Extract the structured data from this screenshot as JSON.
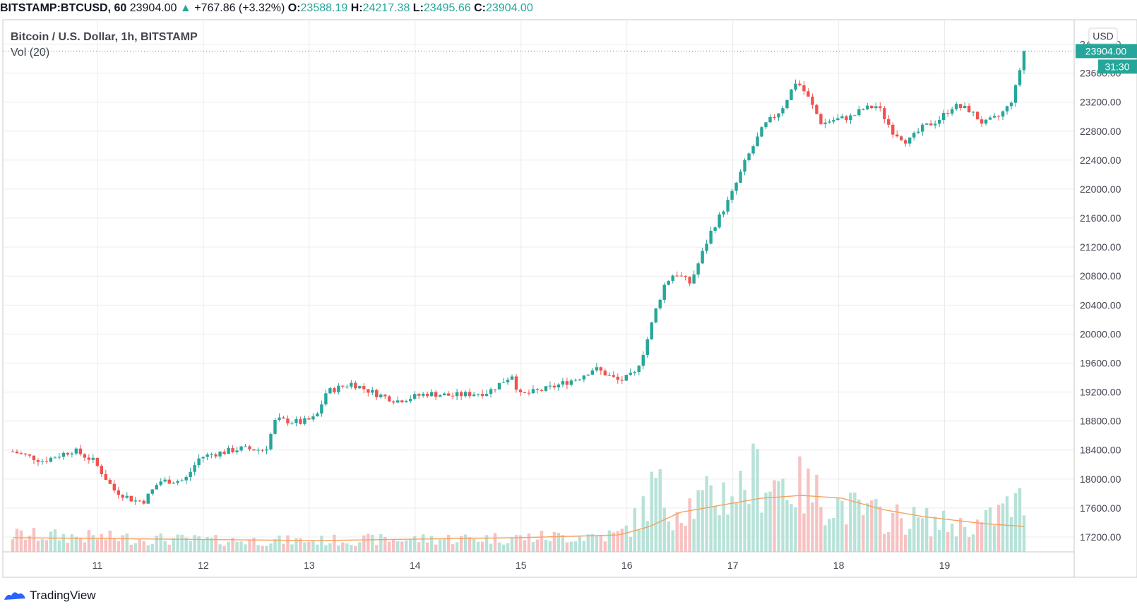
{
  "header": {
    "symbol": "BITSTAMP:BTCUSD, 60",
    "last": "23904.00",
    "arrow": "▲",
    "change": "+767.86 (+3.32%)",
    "o_label": "O:",
    "o_value": "23588.19",
    "h_label": "H:",
    "h_value": "24217.38",
    "l_label": "L:",
    "l_value": "23495.66",
    "c_label": "C:",
    "c_value": "23904.00"
  },
  "legend": {
    "title": "Bitcoin / U.S. Dollar, 1h, BITSTAMP",
    "volume": "Vol (20)"
  },
  "price_axis": {
    "currency": "USD",
    "last_price_label": "23904.00",
    "countdown_label": "31:30"
  },
  "footer": {
    "brand": "TradingView"
  },
  "colors": {
    "up": "#26a69a",
    "down": "#ef5350",
    "vol_up": "#b7e2d8",
    "vol_down": "#f7c2c2",
    "ma": "#f5a25d",
    "grid": "#ececec"
  },
  "chart_data": {
    "type": "candlestick",
    "title": "Bitcoin / U.S. Dollar, 1h, BITSTAMP",
    "ylim": [
      17200,
      24200
    ],
    "y_ticks": [
      "17200.00",
      "17600.00",
      "18000.00",
      "18400.00",
      "18800.00",
      "19200.00",
      "19600.00",
      "20000.00",
      "20400.00",
      "20800.00",
      "21200.00",
      "21600.00",
      "22000.00",
      "22400.00",
      "22800.00",
      "23200.00",
      "23600.00",
      "24000.00"
    ],
    "x_ticks": [
      "11",
      "12",
      "13",
      "14",
      "15",
      "16",
      "17",
      "18",
      "19"
    ],
    "x_tick_positions": [
      0.8,
      1.8,
      2.8,
      3.8,
      4.8,
      5.8,
      6.8,
      7.8,
      8.8
    ],
    "x_range": [
      0,
      9.55
    ],
    "price_keypoints": [
      [
        0,
        18380
      ],
      [
        0.3,
        18250
      ],
      [
        0.6,
        18400
      ],
      [
        0.8,
        18250
      ],
      [
        1.0,
        17850
      ],
      [
        1.2,
        17700
      ],
      [
        1.3,
        17700
      ],
      [
        1.45,
        17970
      ],
      [
        1.7,
        17980
      ],
      [
        1.85,
        18300
      ],
      [
        2.0,
        18350
      ],
      [
        2.25,
        18420
      ],
      [
        2.5,
        18400
      ],
      [
        2.6,
        18820
      ],
      [
        2.85,
        18780
      ],
      [
        3.0,
        18850
      ],
      [
        3.1,
        19200
      ],
      [
        3.35,
        19320
      ],
      [
        3.6,
        19170
      ],
      [
        3.8,
        19080
      ],
      [
        4.1,
        19180
      ],
      [
        4.35,
        19150
      ],
      [
        4.7,
        19200
      ],
      [
        4.95,
        19450
      ],
      [
        5.0,
        19150
      ],
      [
        5.3,
        19250
      ],
      [
        5.6,
        19400
      ],
      [
        5.75,
        19530
      ],
      [
        6.0,
        19350
      ],
      [
        6.15,
        19450
      ],
      [
        6.25,
        19800
      ],
      [
        6.35,
        20300
      ],
      [
        6.45,
        20700
      ],
      [
        6.55,
        20850
      ],
      [
        6.7,
        20700
      ],
      [
        6.9,
        21400
      ],
      [
        7.1,
        21900
      ],
      [
        7.25,
        22400
      ],
      [
        7.4,
        22800
      ],
      [
        7.45,
        22900
      ],
      [
        7.6,
        23100
      ],
      [
        7.75,
        23500
      ],
      [
        7.85,
        23300
      ],
      [
        8.0,
        22900
      ],
      [
        8.1,
        22950
      ],
      [
        8.3,
        23000
      ],
      [
        8.4,
        23100
      ],
      [
        8.55,
        23150
      ],
      [
        8.7,
        22800
      ],
      [
        8.85,
        22650
      ],
      [
        9.0,
        22850
      ],
      [
        9.15,
        22950
      ],
      [
        9.3,
        23150
      ],
      [
        9.45,
        23100
      ],
      [
        9.6,
        22900
      ],
      [
        9.75,
        23000
      ],
      [
        9.85,
        23150
      ],
      [
        9.9,
        23300
      ],
      [
        9.95,
        23600
      ],
      [
        10.0,
        23904
      ]
    ],
    "volume_keypoints": [
      [
        0,
        0.12
      ],
      [
        1.0,
        0.1
      ],
      [
        2.0,
        0.08
      ],
      [
        3.0,
        0.08
      ],
      [
        4.0,
        0.09
      ],
      [
        5.0,
        0.1
      ],
      [
        6.0,
        0.12
      ],
      [
        6.2,
        0.25
      ],
      [
        6.35,
        0.48
      ],
      [
        6.5,
        0.3
      ],
      [
        6.8,
        0.35
      ],
      [
        7.2,
        0.45
      ],
      [
        7.35,
        0.55
      ],
      [
        7.6,
        0.5
      ],
      [
        7.8,
        0.45
      ],
      [
        8.0,
        0.38
      ],
      [
        8.3,
        0.3
      ],
      [
        8.6,
        0.25
      ],
      [
        9.0,
        0.22
      ],
      [
        9.4,
        0.18
      ],
      [
        9.6,
        0.2
      ],
      [
        9.8,
        0.3
      ],
      [
        10.0,
        0.35
      ]
    ],
    "ma_keypoints": [
      [
        0,
        0.1
      ],
      [
        3,
        0.08
      ],
      [
        5,
        0.1
      ],
      [
        6,
        0.12
      ],
      [
        6.3,
        0.18
      ],
      [
        6.6,
        0.28
      ],
      [
        7.0,
        0.33
      ],
      [
        7.4,
        0.38
      ],
      [
        7.8,
        0.4
      ],
      [
        8.2,
        0.38
      ],
      [
        8.6,
        0.3
      ],
      [
        9.0,
        0.25
      ],
      [
        9.6,
        0.2
      ],
      [
        10.0,
        0.18
      ]
    ]
  }
}
